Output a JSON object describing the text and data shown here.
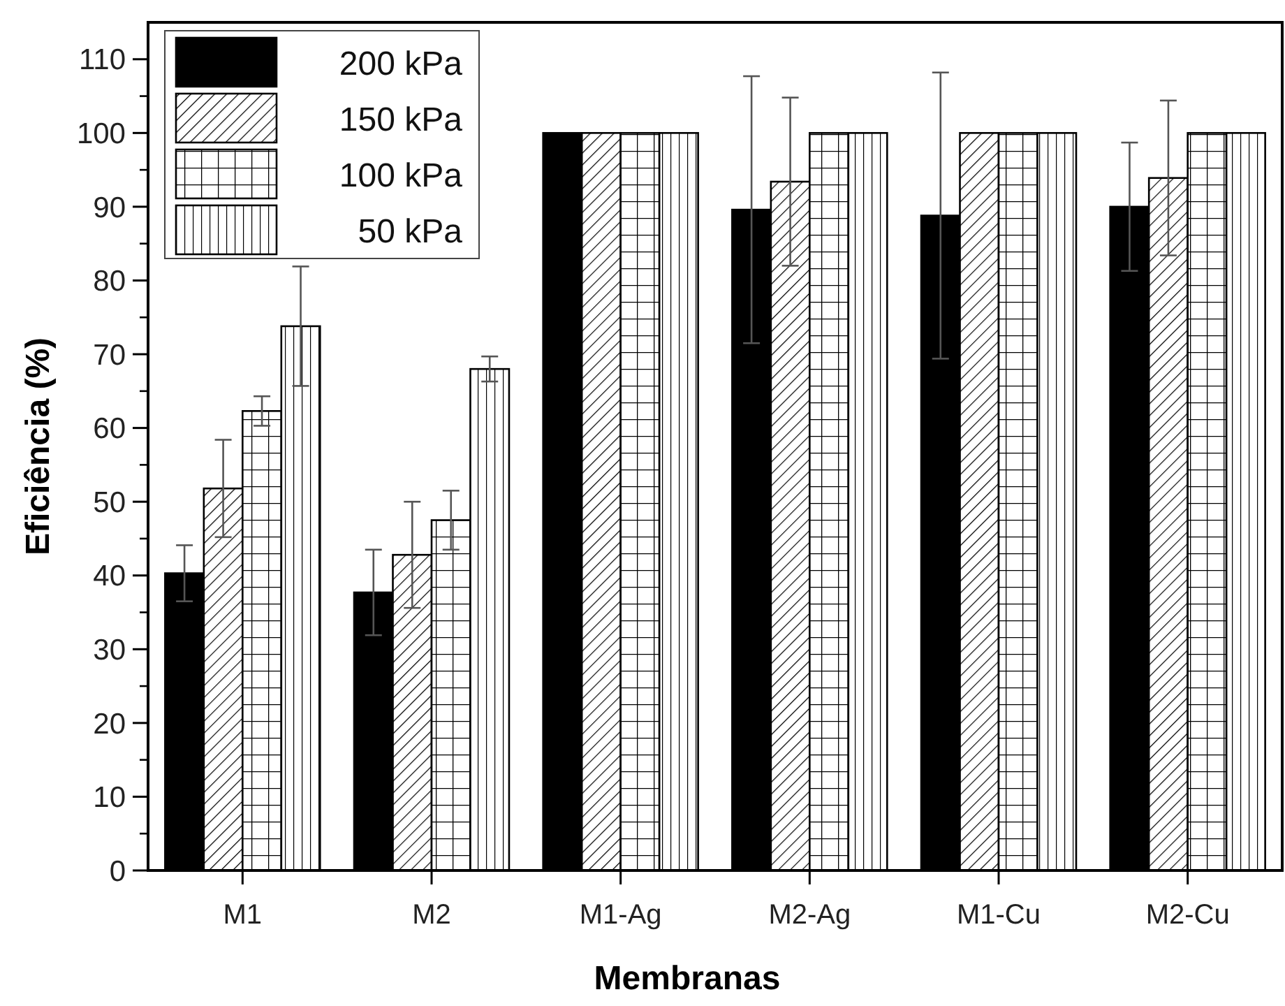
{
  "chart_data": {
    "type": "bar",
    "xlabel": "Membranas",
    "ylabel": "Eficiência (%)",
    "categories": [
      "M1",
      "M2",
      "M1-Ag",
      "M2-Ag",
      "M1-Cu",
      "M2-Cu"
    ],
    "ylim": [
      0,
      115
    ],
    "yticks": [
      0,
      10,
      20,
      30,
      40,
      50,
      60,
      70,
      80,
      90,
      100,
      110
    ],
    "legend": "top left",
    "series": [
      {
        "name": "200 kPa",
        "color": "#000000",
        "values": [
          40.3,
          37.7,
          100,
          89.6,
          88.8,
          90
        ],
        "errors": [
          3.8,
          5.8,
          null,
          18.1,
          19.4,
          8.7
        ]
      },
      {
        "name": "150 kPa",
        "color": "#000000",
        "values": [
          51.8,
          42.8,
          100,
          93.4,
          100,
          93.9
        ],
        "errors": [
          6.6,
          7.2,
          null,
          11.4,
          null,
          10.5
        ]
      },
      {
        "name": "100 kPa",
        "color": "#000000",
        "values": [
          62.3,
          47.5,
          100,
          100,
          100,
          100
        ],
        "errors": [
          2,
          4,
          null,
          null,
          null,
          null
        ]
      },
      {
        "name": " 50 kPa",
        "color": "#000000",
        "values": [
          73.8,
          68,
          100,
          100,
          100,
          100
        ],
        "errors": [
          8.1,
          1.7,
          null,
          null,
          null,
          null
        ]
      }
    ]
  }
}
